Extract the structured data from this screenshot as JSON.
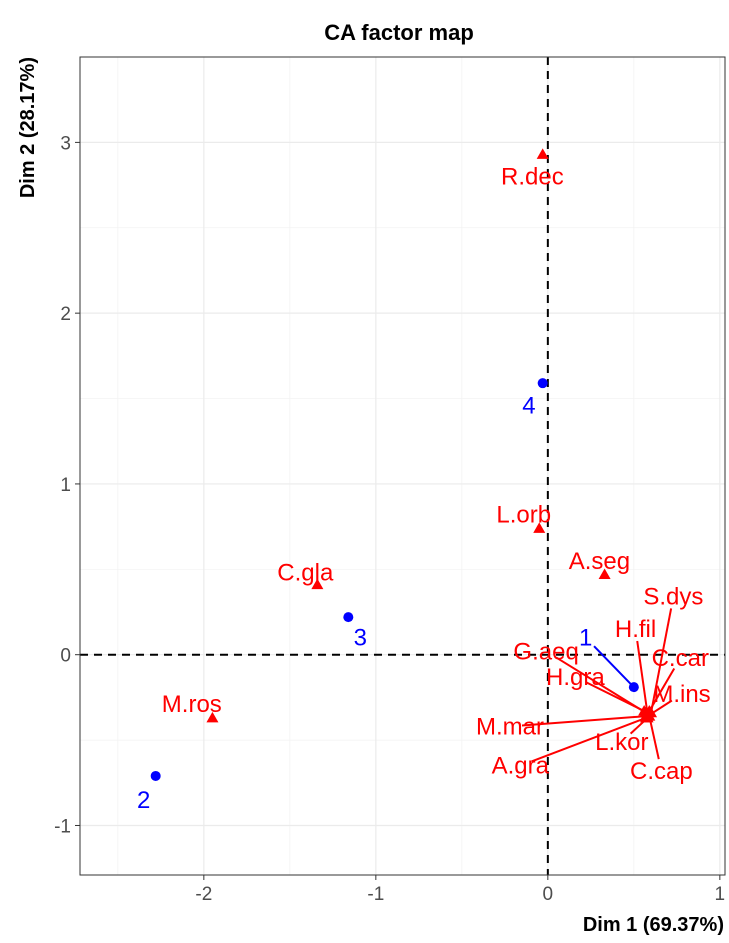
{
  "chart_data": {
    "type": "scatter",
    "title": "CA factor map",
    "xlabel": "Dim 1 (69.37%)",
    "ylabel": "Dim 2 (28.17%)",
    "xlim": [
      -2.72,
      1.03
    ],
    "ylim": [
      -1.29,
      3.5
    ],
    "x_ticks": [
      -2,
      -1,
      0,
      1
    ],
    "x_tick_labels": [
      "-2",
      "-1",
      "0",
      "1"
    ],
    "y_ticks": [
      -1,
      0,
      1,
      2,
      3
    ],
    "y_tick_labels": [
      "-1",
      "0",
      "1",
      "2",
      "3"
    ],
    "grid": true,
    "reference_lines": {
      "x": 0,
      "y": 0,
      "style": "dashed"
    },
    "colors": {
      "row": "#0000ff",
      "col": "#ff0000",
      "grid": "#ebebeb",
      "panel_border": "#333333"
    },
    "row_points": [
      {
        "label": "1",
        "x": 0.5,
        "y": -0.19,
        "label_x": 0.22,
        "label_y": 0.1
      },
      {
        "label": "2",
        "x": -2.28,
        "y": -0.71,
        "label_x": -2.35,
        "label_y": -0.85
      },
      {
        "label": "3",
        "x": -1.16,
        "y": 0.22,
        "label_x": -1.09,
        "label_y": 0.1
      },
      {
        "label": "4",
        "x": -0.03,
        "y": 1.59,
        "label_x": -0.11,
        "label_y": 1.46
      }
    ],
    "col_points": [
      {
        "label": "R.dec",
        "x": -0.03,
        "y": 2.93,
        "label_x": -0.09,
        "label_y": 2.8
      },
      {
        "label": "L.orb",
        "x": -0.05,
        "y": 0.74,
        "label_x": -0.14,
        "label_y": 0.82
      },
      {
        "label": "A.seg",
        "x": 0.33,
        "y": 0.47,
        "label_x": 0.3,
        "label_y": 0.55
      },
      {
        "label": "C.gla",
        "x": -1.34,
        "y": 0.41,
        "label_x": -1.41,
        "label_y": 0.48
      },
      {
        "label": "M.ros",
        "x": -1.95,
        "y": -0.37,
        "label_x": -2.07,
        "label_y": -0.29
      },
      {
        "label": "S.dys",
        "x": 0.6,
        "y": -0.34,
        "label_x": 0.73,
        "label_y": 0.34
      },
      {
        "label": "H.fil",
        "x": 0.58,
        "y": -0.35,
        "label_x": 0.51,
        "label_y": 0.15
      },
      {
        "label": "C.car",
        "x": 0.59,
        "y": -0.33,
        "label_x": 0.77,
        "label_y": -0.02
      },
      {
        "label": "G.aeq",
        "x": 0.57,
        "y": -0.34,
        "label_x": -0.01,
        "label_y": 0.02
      },
      {
        "label": "M.ins",
        "x": 0.58,
        "y": -0.36,
        "label_x": 0.78,
        "label_y": -0.23
      },
      {
        "label": "H.gra",
        "x": 0.56,
        "y": -0.33,
        "label_x": 0.16,
        "label_y": -0.13
      },
      {
        "label": "M.mar",
        "x": 0.57,
        "y": -0.36,
        "label_x": -0.22,
        "label_y": -0.42
      },
      {
        "label": "L.kor",
        "x": 0.58,
        "y": -0.37,
        "label_x": 0.43,
        "label_y": -0.51
      },
      {
        "label": "A.gra",
        "x": 0.57,
        "y": -0.37,
        "label_x": -0.16,
        "label_y": -0.65
      },
      {
        "label": "C.cap",
        "x": 0.59,
        "y": -0.36,
        "label_x": 0.66,
        "label_y": -0.68
      }
    ]
  }
}
